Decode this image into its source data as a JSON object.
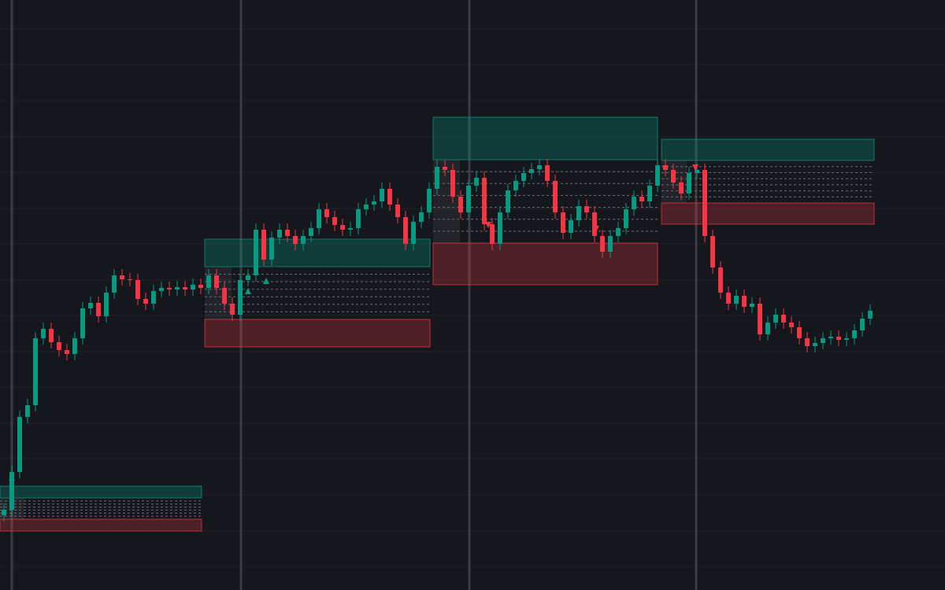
{
  "chart_data": {
    "type": "candlestick",
    "up_color": "#089981",
    "down_color": "#f23645",
    "xlim": [
      -0.5,
      119.5
    ],
    "ylim": [
      0,
      750
    ],
    "open": [
      95,
      102,
      150,
      220,
      235,
      320,
      332,
      315,
      305,
      300,
      320,
      358,
      365,
      348,
      378,
      400,
      395,
      394,
      370,
      364,
      380,
      384,
      382,
      385,
      382,
      388,
      384,
      400,
      384,
      364,
      350,
      394,
      400,
      458,
      420,
      448,
      458,
      450,
      440,
      450,
      460,
      484,
      474,
      464,
      458,
      460,
      484,
      490,
      494,
      510,
      490,
      474,
      440,
      468,
      480,
      510,
      538,
      534,
      500,
      480,
      514,
      524,
      465,
      440,
      480,
      508,
      520,
      530,
      535,
      540,
      520,
      480,
      454,
      470,
      488,
      480,
      450,
      430,
      450,
      460,
      484,
      500,
      494,
      514,
      540,
      534,
      518,
      504,
      530,
      534,
      450,
      410,
      378,
      364,
      374,
      360,
      364,
      325,
      340,
      350,
      340,
      334,
      320,
      310,
      314,
      320,
      322,
      318,
      320,
      330,
      345
    ],
    "high": [
      110,
      158,
      228,
      243,
      328,
      340,
      340,
      323,
      313,
      328,
      366,
      373,
      373,
      386,
      408,
      408,
      403,
      402,
      378,
      388,
      392,
      392,
      393,
      393,
      396,
      396,
      408,
      408,
      392,
      372,
      402,
      408,
      466,
      466,
      456,
      466,
      466,
      458,
      458,
      468,
      492,
      492,
      482,
      472,
      468,
      492,
      498,
      502,
      518,
      518,
      498,
      482,
      476,
      488,
      518,
      546,
      546,
      542,
      508,
      522,
      532,
      532,
      473,
      488,
      516,
      528,
      538,
      543,
      548,
      548,
      528,
      488,
      478,
      496,
      496,
      488,
      458,
      458,
      468,
      492,
      508,
      508,
      522,
      548,
      548,
      542,
      526,
      538,
      542,
      542,
      458,
      418,
      386,
      382,
      382,
      372,
      372,
      348,
      358,
      358,
      348,
      342,
      328,
      322,
      328,
      330,
      330,
      328,
      338,
      353,
      363
    ],
    "low": [
      87,
      94,
      142,
      212,
      227,
      312,
      307,
      297,
      292,
      292,
      312,
      350,
      340,
      340,
      370,
      387,
      386,
      362,
      356,
      356,
      372,
      374,
      374,
      374,
      374,
      376,
      376,
      376,
      356,
      342,
      342,
      386,
      392,
      412,
      412,
      440,
      442,
      432,
      432,
      442,
      452,
      466,
      456,
      450,
      450,
      452,
      476,
      482,
      486,
      482,
      466,
      432,
      432,
      460,
      472,
      502,
      526,
      492,
      472,
      472,
      506,
      457,
      432,
      432,
      472,
      500,
      512,
      522,
      527,
      512,
      472,
      446,
      446,
      462,
      472,
      442,
      422,
      422,
      442,
      452,
      476,
      486,
      486,
      506,
      526,
      510,
      496,
      496,
      522,
      442,
      402,
      370,
      356,
      356,
      352,
      352,
      317,
      317,
      332,
      332,
      326,
      312,
      302,
      302,
      306,
      312,
      310,
      310,
      312,
      322,
      337
    ],
    "close": [
      102,
      150,
      220,
      235,
      320,
      332,
      315,
      305,
      300,
      320,
      358,
      365,
      348,
      378,
      400,
      395,
      394,
      370,
      364,
      380,
      384,
      382,
      385,
      382,
      388,
      384,
      400,
      384,
      364,
      350,
      394,
      400,
      458,
      420,
      448,
      458,
      450,
      440,
      450,
      460,
      484,
      474,
      464,
      458,
      460,
      484,
      490,
      494,
      510,
      490,
      474,
      440,
      468,
      480,
      510,
      538,
      534,
      500,
      480,
      514,
      524,
      465,
      440,
      480,
      508,
      520,
      530,
      535,
      540,
      520,
      480,
      454,
      470,
      488,
      480,
      450,
      430,
      450,
      460,
      484,
      500,
      494,
      514,
      540,
      534,
      518,
      504,
      530,
      534,
      450,
      410,
      378,
      364,
      374,
      360,
      364,
      325,
      340,
      350,
      340,
      334,
      320,
      310,
      314,
      320,
      322,
      318,
      320,
      330,
      345,
      355
    ],
    "zones": [
      {
        "start": -0.5,
        "end": 25.1,
        "supply_top": 132,
        "supply_bottom": 117,
        "demand_top": 90,
        "demand_bottom": 75
      },
      {
        "start": 25.5,
        "end": 54.1,
        "supply_top": 446,
        "supply_bottom": 411,
        "demand_top": 344,
        "demand_bottom": 309
      },
      {
        "start": 54.5,
        "end": 83,
        "supply_top": 601,
        "supply_bottom": 547,
        "demand_top": 441,
        "demand_bottom": 388
      },
      {
        "start": 83.5,
        "end": 110.5,
        "supply_top": 573,
        "supply_bottom": 546,
        "demand_top": 492,
        "demand_bottom": 465
      }
    ],
    "sessions": [
      1,
      30.1,
      59.1,
      87.9
    ],
    "signals": [
      {
        "index": 1,
        "direction": "up",
        "price": 143
      },
      {
        "index": 31,
        "direction": "up",
        "price": 380
      },
      {
        "index": 33.3,
        "direction": "up",
        "price": 393
      },
      {
        "index": 61.5,
        "direction": "down",
        "price": 464
      },
      {
        "index": 75.2,
        "direction": "down",
        "price": 459
      },
      {
        "index": 87.8,
        "direction": "down",
        "price": 537
      }
    ]
  }
}
